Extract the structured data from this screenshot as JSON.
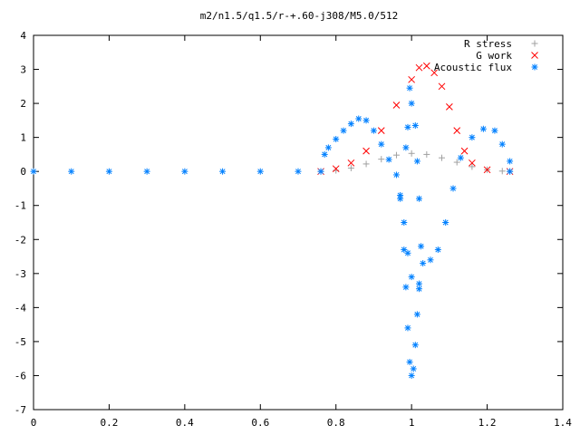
{
  "chart_data": {
    "type": "scatter",
    "title": "m2/n1.5/q1.5/r-+.60-j308/M5.0/512",
    "xlim": [
      0,
      1.4
    ],
    "ylim": [
      -7,
      4
    ],
    "x_ticks": [
      "0",
      "0.2",
      "0.4",
      "0.6",
      "0.8",
      "1",
      "1.2",
      "1.4"
    ],
    "y_ticks": [
      "4",
      "3",
      "2",
      "1",
      "0",
      "-1",
      "-2",
      "-3",
      "-4",
      "-5",
      "-6",
      "-7"
    ],
    "grid": false,
    "legend_position": "top-right",
    "series": [
      {
        "name": "R stress",
        "marker": "plus",
        "color": "#a0a0a0",
        "points": [
          [
            0.76,
            0.0
          ],
          [
            0.8,
            0.03
          ],
          [
            0.84,
            0.1
          ],
          [
            0.88,
            0.22
          ],
          [
            0.92,
            0.36
          ],
          [
            0.96,
            0.48
          ],
          [
            1.0,
            0.53
          ],
          [
            1.04,
            0.5
          ],
          [
            1.08,
            0.4
          ],
          [
            1.12,
            0.27
          ],
          [
            1.16,
            0.14
          ],
          [
            1.2,
            0.05
          ],
          [
            1.24,
            0.01
          ],
          [
            1.26,
            0.0
          ]
        ]
      },
      {
        "name": "G work",
        "marker": "cross",
        "color": "#ff0000",
        "points": [
          [
            0.76,
            0.0
          ],
          [
            0.8,
            0.08
          ],
          [
            0.84,
            0.25
          ],
          [
            0.88,
            0.6
          ],
          [
            0.92,
            1.2
          ],
          [
            0.96,
            1.95
          ],
          [
            1.0,
            2.7
          ],
          [
            1.02,
            3.05
          ],
          [
            1.04,
            3.1
          ],
          [
            1.06,
            2.9
          ],
          [
            1.08,
            2.5
          ],
          [
            1.1,
            1.9
          ],
          [
            1.12,
            1.2
          ],
          [
            1.14,
            0.6
          ],
          [
            1.16,
            0.25
          ],
          [
            1.2,
            0.05
          ],
          [
            1.26,
            0.0
          ]
        ]
      },
      {
        "name": "Acoustic flux",
        "marker": "star",
        "color": "#0080ff",
        "points": [
          [
            0.0,
            0.0
          ],
          [
            0.1,
            0.0
          ],
          [
            0.2,
            0.0
          ],
          [
            0.3,
            0.0
          ],
          [
            0.4,
            0.0
          ],
          [
            0.5,
            0.0
          ],
          [
            0.6,
            0.0
          ],
          [
            0.7,
            0.0
          ],
          [
            0.76,
            0.0
          ],
          [
            0.77,
            0.5
          ],
          [
            0.78,
            0.7
          ],
          [
            0.8,
            0.95
          ],
          [
            0.82,
            1.2
          ],
          [
            0.84,
            1.4
          ],
          [
            0.86,
            1.55
          ],
          [
            0.88,
            1.5
          ],
          [
            0.9,
            1.2
          ],
          [
            0.92,
            0.8
          ],
          [
            0.94,
            0.35
          ],
          [
            0.96,
            -0.1
          ],
          [
            0.97,
            -0.7
          ],
          [
            0.98,
            -1.5
          ],
          [
            0.99,
            -2.4
          ],
          [
            1.0,
            -3.1
          ],
          [
            1.02,
            -3.3
          ],
          [
            1.03,
            -2.7
          ],
          [
            1.05,
            -2.6
          ],
          [
            1.07,
            -2.3
          ],
          [
            1.09,
            -1.5
          ],
          [
            1.11,
            -0.5
          ],
          [
            1.13,
            0.4
          ],
          [
            1.16,
            1.0
          ],
          [
            1.19,
            1.25
          ],
          [
            1.22,
            1.2
          ],
          [
            1.24,
            0.8
          ],
          [
            1.26,
            0.3
          ],
          [
            1.26,
            0.0
          ],
          [
            0.97,
            -0.8
          ],
          [
            0.98,
            -2.3
          ],
          [
            0.985,
            -3.4
          ],
          [
            0.99,
            -4.6
          ],
          [
            0.995,
            -5.6
          ],
          [
            1.0,
            -6.0
          ],
          [
            1.005,
            -5.8
          ],
          [
            1.01,
            -5.1
          ],
          [
            1.015,
            -4.2
          ],
          [
            1.02,
            -3.45
          ],
          [
            1.025,
            -2.2
          ],
          [
            1.02,
            -0.8
          ],
          [
            1.015,
            0.3
          ],
          [
            1.01,
            1.35
          ],
          [
            1.0,
            2.0
          ],
          [
            0.995,
            2.45
          ],
          [
            0.99,
            1.3
          ],
          [
            0.985,
            0.7
          ]
        ]
      }
    ]
  }
}
